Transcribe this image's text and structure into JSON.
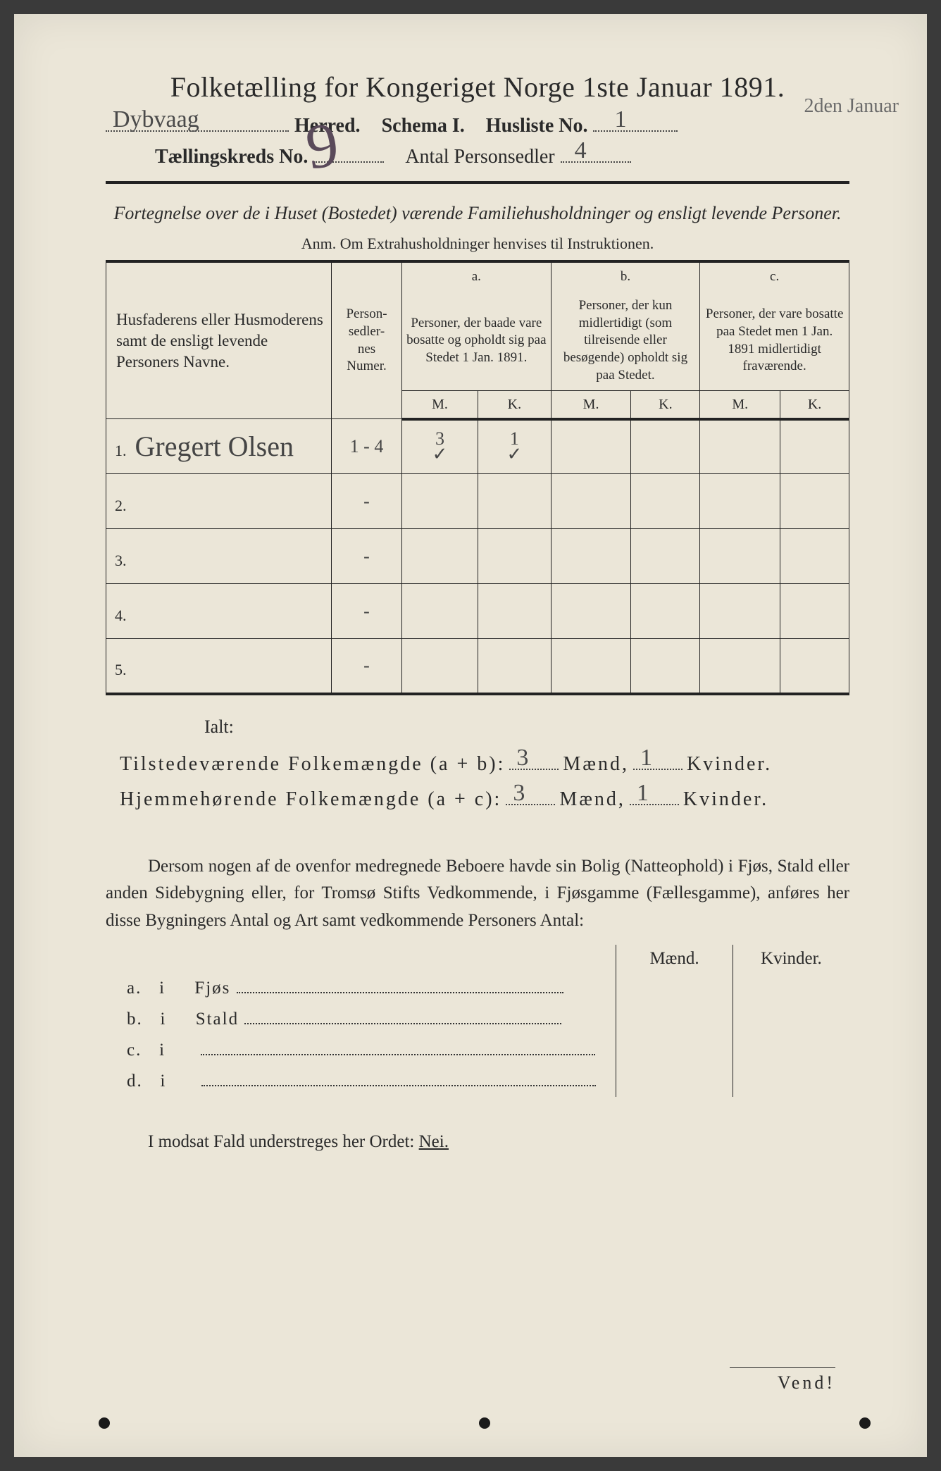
{
  "title": "Folketælling for Kongeriget Norge 1ste Januar 1891.",
  "header": {
    "herred_value": "Dybvaag",
    "herred_label": "Herred.",
    "schema_label": "Schema I.",
    "husliste_label": "Husliste No.",
    "husliste_value": "1",
    "kreds_label": "Tællingskreds No.",
    "kreds_value": "9",
    "antal_label": "Antal Personsedler",
    "antal_value": "4",
    "margin_note": "2den Januar"
  },
  "fortegnelse": "Fortegnelse over de i Huset (Bostedet) værende Familiehusholdninger og ensligt levende Personer.",
  "anm": "Anm. Om Extrahusholdninger henvises til Instruktionen.",
  "columns": {
    "name": "Husfaderens eller Husmoderens samt de ensligt levende Personers Navne.",
    "numer": "Person-\nsedler-\nnes\nNumer.",
    "a_label": "a.",
    "a_text": "Personer, der baade vare bosatte og opholdt sig paa Stedet 1 Jan. 1891.",
    "b_label": "b.",
    "b_text": "Personer, der kun midlertidigt (som tilreisende eller besøgende) opholdt sig paa Stedet.",
    "c_label": "c.",
    "c_text": "Personer, der vare bosatte paa Stedet men 1 Jan. 1891 midlertidigt fraværende.",
    "m": "M.",
    "k": "K."
  },
  "rows": [
    {
      "n": "1.",
      "name": "Gregert Olsen",
      "numer": "1 - 4",
      "am": "3",
      "ak": "1",
      "bm": "",
      "bk": "",
      "cm": "",
      "ck": ""
    },
    {
      "n": "2.",
      "name": "",
      "numer": "-",
      "am": "",
      "ak": "",
      "bm": "",
      "bk": "",
      "cm": "",
      "ck": ""
    },
    {
      "n": "3.",
      "name": "",
      "numer": "-",
      "am": "",
      "ak": "",
      "bm": "",
      "bk": "",
      "cm": "",
      "ck": ""
    },
    {
      "n": "4.",
      "name": "",
      "numer": "-",
      "am": "",
      "ak": "",
      "bm": "",
      "bk": "",
      "cm": "",
      "ck": ""
    },
    {
      "n": "5.",
      "name": "",
      "numer": "-",
      "am": "",
      "ak": "",
      "bm": "",
      "bk": "",
      "cm": "",
      "ck": ""
    }
  ],
  "ialt": "Ialt:",
  "totals": {
    "tilstede_label": "Tilstedeværende Folkemængde (a + b):",
    "hjemme_label": "Hjemmehørende Folkemængde (a + c):",
    "tilstede_m": "3",
    "tilstede_k": "1",
    "hjemme_m": "3",
    "hjemme_k": "1",
    "maend": "Mænd,",
    "kvinder": "Kvinder."
  },
  "dersom": "Dersom nogen af de ovenfor medregnede Beboere havde sin Bolig (Natteophold) i Fjøs, Stald eller anden Sidebygning eller, for Tromsø Stifts Vedkommende, i Fjøsgamme (Fællesgamme), anføres her disse Bygningers Antal og Art samt vedkommende Personers Antal:",
  "bygning": {
    "maend": "Mænd.",
    "kvinder": "Kvinder.",
    "rows": [
      {
        "l": "a.",
        "i": "i",
        "t": "Fjøs"
      },
      {
        "l": "b.",
        "i": "i",
        "t": "Stald"
      },
      {
        "l": "c.",
        "i": "i",
        "t": ""
      },
      {
        "l": "d.",
        "i": "i",
        "t": ""
      }
    ]
  },
  "modsat_pre": "I modsat Fald understreges her Ordet: ",
  "modsat_nei": "Nei.",
  "vend": "Vend!",
  "colors": {
    "paper": "#ebe6d8",
    "ink": "#2a2a2a",
    "hand": "#4a4a4a"
  }
}
